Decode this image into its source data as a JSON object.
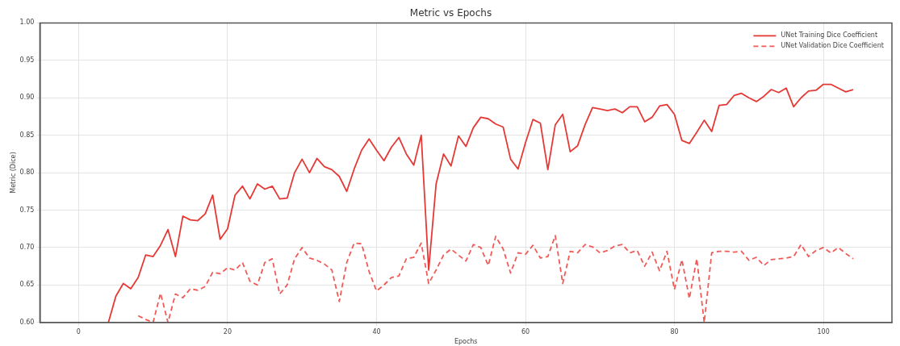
{
  "chart_data": {
    "type": "line",
    "title": "Metric vs Epochs",
    "xlabel": "Epochs",
    "ylabel": "Metric (Dice)",
    "x": [
      4,
      5,
      6,
      7,
      8,
      9,
      10,
      11,
      12,
      13,
      14,
      15,
      16,
      17,
      18,
      19,
      20,
      21,
      22,
      23,
      24,
      25,
      26,
      27,
      28,
      29,
      30,
      31,
      32,
      33,
      34,
      35,
      36,
      37,
      38,
      39,
      40,
      41,
      42,
      43,
      44,
      45,
      46,
      47,
      48,
      49,
      50,
      51,
      52,
      53,
      54,
      55,
      56,
      57,
      58,
      59,
      60,
      61,
      62,
      63,
      64,
      65,
      66,
      67,
      68,
      69,
      70,
      71,
      72,
      73,
      74,
      75,
      76,
      77,
      78,
      79,
      80,
      81,
      82,
      83,
      84,
      85,
      86,
      87,
      88,
      89,
      90,
      91,
      92,
      93,
      94,
      95,
      96,
      97,
      98,
      99,
      100,
      101,
      102,
      103,
      104
    ],
    "series": [
      {
        "name": "UNet Training Dice Coefficient",
        "color": "#e53935",
        "line_style": "solid",
        "values": [
          0.6,
          0.635,
          0.652,
          0.645,
          0.66,
          0.69,
          0.688,
          0.703,
          0.724,
          0.688,
          0.742,
          0.737,
          0.736,
          0.745,
          0.77,
          0.711,
          0.725,
          0.77,
          0.782,
          0.765,
          0.785,
          0.778,
          0.782,
          0.765,
          0.766,
          0.8,
          0.818,
          0.8,
          0.819,
          0.808,
          0.804,
          0.795,
          0.775,
          0.805,
          0.83,
          0.845,
          0.83,
          0.816,
          0.834,
          0.847,
          0.825,
          0.81,
          0.85,
          0.67,
          0.785,
          0.825,
          0.809,
          0.849,
          0.835,
          0.86,
          0.874,
          0.872,
          0.865,
          0.861,
          0.818,
          0.805,
          0.84,
          0.871,
          0.866,
          0.804,
          0.864,
          0.878,
          0.828,
          0.836,
          0.864,
          0.887,
          0.885,
          0.883,
          0.885,
          0.88,
          0.888,
          0.888,
          0.868,
          0.874,
          0.889,
          0.891,
          0.878,
          0.843,
          0.839,
          0.854,
          0.87,
          0.855,
          0.89,
          0.891,
          0.903,
          0.906,
          0.9,
          0.895,
          0.902,
          0.911,
          0.907,
          0.913,
          0.888,
          0.9,
          0.909,
          0.91,
          0.918,
          0.918,
          0.913,
          0.908,
          0.911
        ]
      },
      {
        "name": "UNet Validation Dice Coefficient",
        "color": "#f05a57",
        "line_style": "dashed",
        "values": [
          null,
          null,
          null,
          null,
          0.609,
          0.604,
          0.6,
          0.639,
          0.6,
          0.638,
          0.633,
          0.645,
          0.643,
          0.648,
          0.667,
          0.665,
          0.673,
          0.67,
          0.68,
          0.655,
          0.65,
          0.68,
          0.685,
          0.638,
          0.65,
          0.685,
          0.7,
          0.686,
          0.683,
          0.678,
          0.67,
          0.628,
          0.68,
          0.706,
          0.705,
          0.668,
          0.642,
          0.65,
          0.66,
          0.662,
          0.685,
          0.687,
          0.706,
          0.652,
          0.67,
          0.69,
          0.698,
          0.69,
          0.682,
          0.704,
          0.7,
          0.676,
          0.715,
          0.698,
          0.666,
          0.693,
          0.691,
          0.703,
          0.686,
          0.688,
          0.716,
          0.652,
          0.695,
          0.693,
          0.704,
          0.701,
          0.693,
          0.696,
          0.702,
          0.704,
          0.693,
          0.696,
          0.675,
          0.694,
          0.669,
          0.695,
          0.644,
          0.684,
          0.632,
          0.685,
          0.6,
          0.693,
          0.695,
          0.695,
          0.694,
          0.695,
          0.683,
          0.687,
          0.676,
          0.684,
          0.685,
          0.686,
          0.688,
          0.704,
          0.688,
          0.696,
          0.7,
          0.693,
          0.7,
          0.692,
          0.685
        ]
      }
    ],
    "xlim": [
      -5.2,
      109.2
    ],
    "xticks": [
      0,
      20,
      40,
      60,
      80,
      100
    ],
    "ylim": [
      0.6,
      1.0
    ],
    "yticks": [
      {
        "value": 0.6,
        "label": "0.60"
      },
      {
        "value": 0.65,
        "label": "0.65"
      },
      {
        "value": 0.7,
        "label": "0.70"
      },
      {
        "value": 0.75,
        "label": "0.75"
      },
      {
        "value": 0.8,
        "label": "0.80"
      },
      {
        "value": 0.85,
        "label": "0.85"
      },
      {
        "value": 0.9,
        "label": "0.90"
      },
      {
        "value": 0.95,
        "label": "0.95"
      },
      {
        "value": 1.0,
        "label": "1.00"
      }
    ],
    "grid": true,
    "legend": "top right",
    "marker": "none"
  }
}
